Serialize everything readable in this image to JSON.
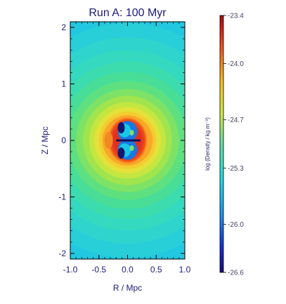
{
  "chart_data": {
    "type": "heatmap",
    "title": "Run A:   100 Myr",
    "xlabel": "R / Mpc",
    "ylabel": "Z / Mpc",
    "xlim": [
      -1.0,
      1.0
    ],
    "ylim": [
      -2.1,
      2.1
    ],
    "xticks": [
      "-1.0",
      "-0.5",
      "0.0",
      "0.5",
      "1.0"
    ],
    "xtick_values": [
      -1.0,
      -0.5,
      0.0,
      0.5,
      1.0
    ],
    "yticks": [
      "2",
      "1",
      "0",
      "-1",
      "-2"
    ],
    "ytick_values": [
      2,
      1,
      0,
      -1,
      -2
    ],
    "colorbar": {
      "label": "log (Density / kg m⁻³)",
      "range": [
        -26.6,
        -23.4
      ],
      "ticks": [
        "-23.4",
        "-24.0",
        "-24.7",
        "-25.3",
        "-26.0",
        "-26.6"
      ],
      "tick_values": [
        -23.4,
        -24.0,
        -24.7,
        -25.3,
        -26.0,
        -26.6
      ],
      "colormap": "rainbow (blue-cyan-yellow-red)"
    },
    "features": {
      "central_density": -23.6,
      "background_density": -25.4,
      "bubble_center_z": 0.0,
      "bubble_half_width_R": 0.28,
      "bubble_half_height_Z": 0.38,
      "cavity_density": -25.6
    },
    "colors": {
      "text": "#1a1a7a",
      "axes": "#000000"
    }
  }
}
